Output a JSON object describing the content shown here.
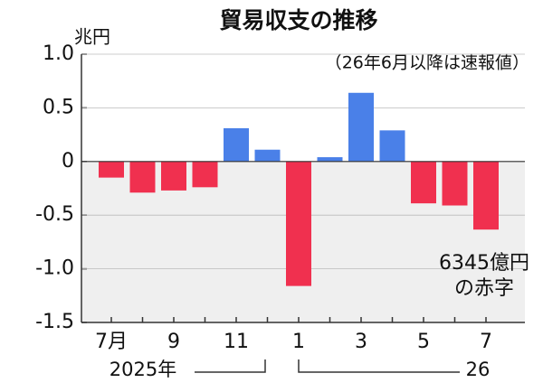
{
  "chart_data": {
    "type": "bar",
    "title": "貿易収支の推移",
    "subtitle": "（26年6月以降は速報値）",
    "y_unit": "兆円",
    "categories": [
      "7月",
      null,
      "9",
      null,
      "11",
      null,
      "1",
      null,
      "3",
      null,
      "5",
      null,
      "7"
    ],
    "values": [
      -0.15,
      -0.29,
      -0.27,
      -0.24,
      0.31,
      0.11,
      -1.16,
      0.04,
      0.64,
      0.29,
      -0.39,
      -0.41,
      -0.6345
    ],
    "color_positive": "#4a80e8",
    "color_negative": "#f0304f",
    "ylim": [
      -1.5,
      1.0
    ],
    "yticks": [
      {
        "value": 1,
        "label": "1.0"
      },
      0.5,
      0,
      -0.5,
      {
        "value": -1,
        "label": "-1.0"
      },
      -1.5
    ],
    "x_groups": [
      {
        "label": "2025年"
      },
      {
        "label": "26"
      }
    ],
    "annotation": [
      "6345億円",
      "の赤字"
    ]
  }
}
